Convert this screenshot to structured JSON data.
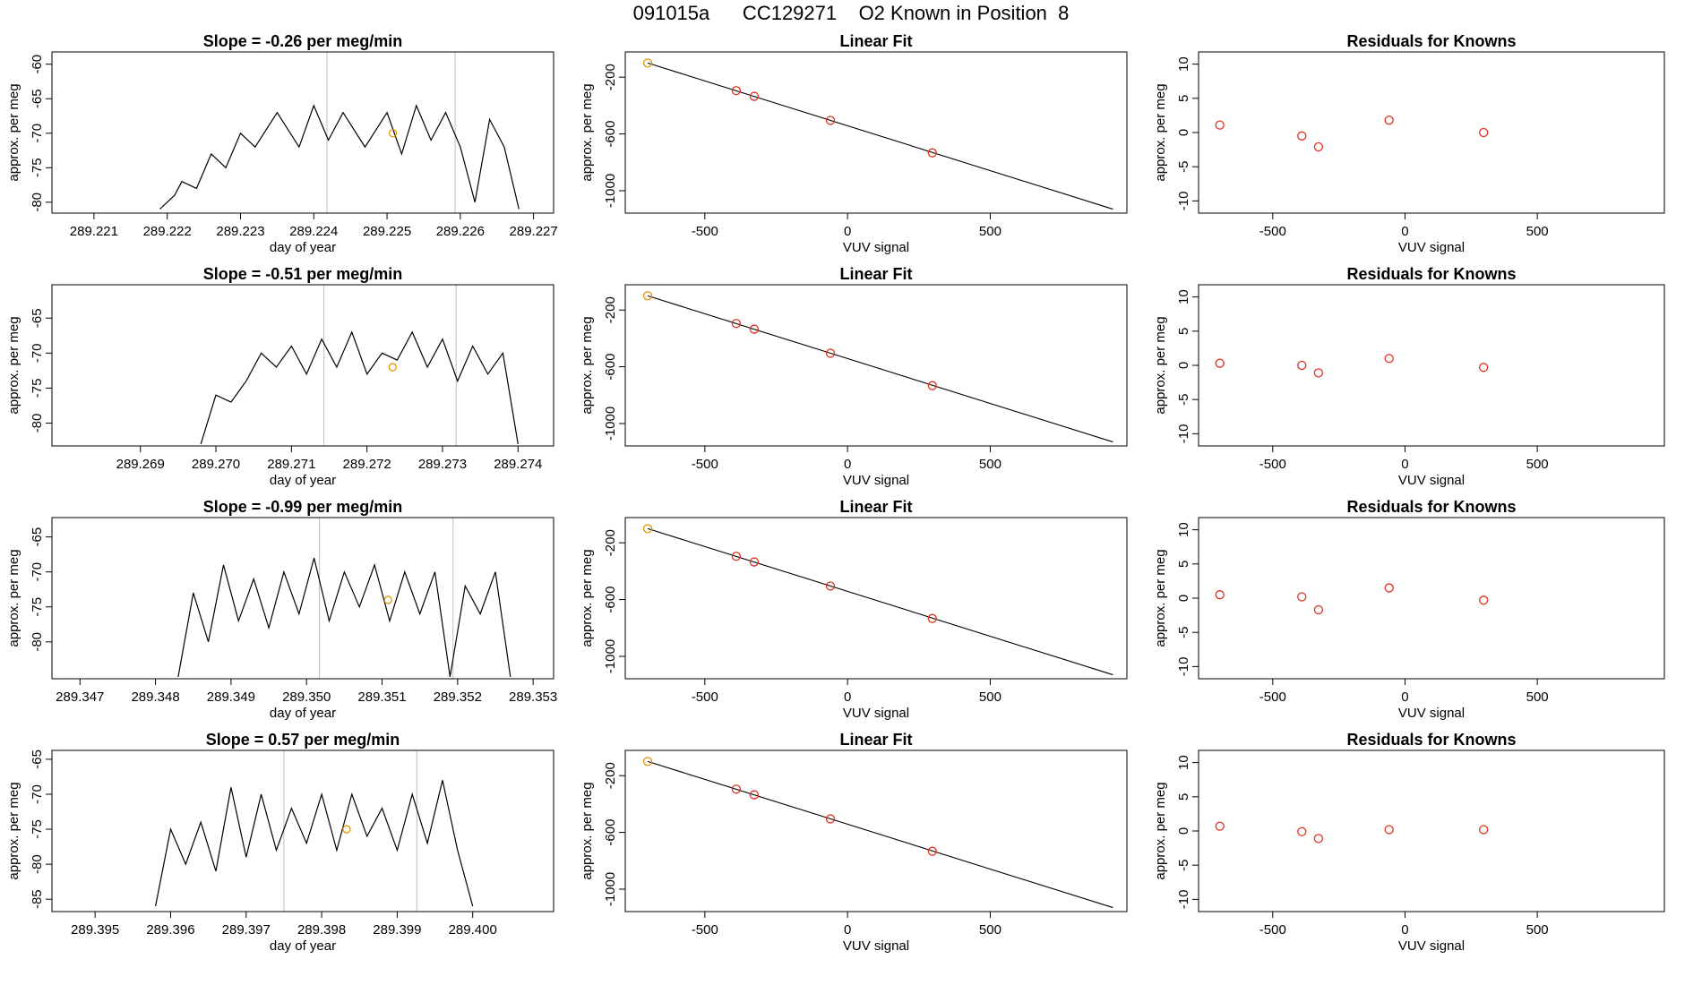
{
  "figure": {
    "title": "091015a      CC129271    O2 Known in Position  8"
  },
  "colors": {
    "line": "#000000",
    "frame": "#000000",
    "vline": "#bebebe",
    "known_point": "#e0301e",
    "first_point": "#e69500",
    "marker": "#e69500"
  },
  "chart_data": [
    {
      "row": 1,
      "timeseries": {
        "type": "line",
        "title": "Slope =  -0.26  per meg/min",
        "xlabel": "day of year",
        "ylabel": "approx. per meg",
        "xlim": [
          289.2205,
          289.2272
        ],
        "ylim": [
          -80.8,
          -59.0
        ],
        "xticks": [
          289.221,
          289.222,
          289.223,
          289.224,
          289.225,
          289.226,
          289.227
        ],
        "xtick_labels": [
          "289.221",
          "289.222",
          "289.223",
          "289.224",
          "289.225",
          "289.226",
          "289.227"
        ],
        "yticks": [
          -80,
          -75,
          -70,
          -65,
          -60
        ],
        "ytick_labels": [
          "-80",
          "-75",
          "-70",
          "-65",
          "-60"
        ],
        "vlines": [
          289.22418,
          289.22593
        ],
        "marker": {
          "x": 289.22508,
          "y": -70
        },
        "x": [
          289.2219,
          289.2221,
          289.2222,
          289.2224,
          289.2226,
          289.2228,
          289.223,
          289.2232,
          289.2235,
          289.2238,
          289.224,
          289.2242,
          289.2244,
          289.2247,
          289.225,
          289.2252,
          289.2254,
          289.2256,
          289.2258,
          289.226,
          289.2262,
          289.2264,
          289.2266,
          289.2268
        ],
        "y": [
          -81,
          -79,
          -77,
          -78,
          -73,
          -75,
          -70,
          -72,
          -67,
          -72,
          -66,
          -71,
          -67,
          -72,
          -67,
          -73,
          -66,
          -71,
          -67,
          -72,
          -80,
          -68,
          -72,
          -81
        ],
        "series_note": ""
      },
      "linear_fit": {
        "type": "scatter",
        "title": "Linear Fit",
        "xlabel": "VUV signal",
        "ylabel": "approx. per meg",
        "xlim": [
          -760,
          960
        ],
        "ylim": [
          -1120,
          -60
        ],
        "xticks": [
          -500,
          0,
          500
        ],
        "xtick_labels": [
          "-500",
          "0",
          "500"
        ],
        "yticks": [
          -1000,
          -600,
          -200
        ],
        "ytick_labels": [
          "-1000",
          "-600",
          "-200"
        ],
        "fit_line": {
          "x": [
            -700,
            930
          ],
          "y": [
            -100,
            -1130
          ]
        },
        "points": {
          "x": [
            -700,
            -390,
            -327,
            -60,
            297
          ],
          "y": [
            -100,
            -295,
            -335,
            -505,
            -733
          ]
        }
      },
      "residuals": {
        "type": "scatter",
        "title": "Residuals for Knowns",
        "xlabel": "VUV signal",
        "ylabel": "approx. per meg",
        "xlim": [
          -760,
          960
        ],
        "ylim": [
          -11,
          11
        ],
        "xticks": [
          -500,
          0,
          500
        ],
        "xtick_labels": [
          "-500",
          "0",
          "500"
        ],
        "yticks": [
          -10,
          -5,
          0,
          5,
          10
        ],
        "ytick_labels": [
          "-10",
          "-5",
          "0",
          "5",
          "10"
        ],
        "points": {
          "x": [
            -700,
            -390,
            -327,
            -60,
            297
          ],
          "y": [
            1.1,
            -0.5,
            -2.1,
            1.8,
            0.0
          ]
        }
      }
    },
    {
      "row": 2,
      "timeseries": {
        "type": "line",
        "title": "Slope =  -0.51  per meg/min",
        "xlabel": "day of year",
        "ylabel": "approx. per meg",
        "xlim": [
          289.2679,
          289.2744
        ],
        "ylim": [
          -82.5,
          -61.0
        ],
        "xticks": [
          289.269,
          289.27,
          289.271,
          289.272,
          289.273,
          289.274
        ],
        "xtick_labels": [
          "289.269",
          "289.270",
          "289.271",
          "289.272",
          "289.273",
          "289.274"
        ],
        "yticks": [
          -80,
          -75,
          -70,
          -65
        ],
        "ytick_labels": [
          "-80",
          "-75",
          "-70",
          "-65"
        ],
        "vlines": [
          289.27143,
          289.27318
        ],
        "marker": {
          "x": 289.27234,
          "y": -72
        },
        "x": [
          289.2698,
          289.27,
          289.2702,
          289.2704,
          289.2706,
          289.2708,
          289.271,
          289.2712,
          289.2714,
          289.2716,
          289.2718,
          289.272,
          289.2722,
          289.2724,
          289.2726,
          289.2728,
          289.273,
          289.2732,
          289.2734,
          289.2736,
          289.2738,
          289.274
        ],
        "y": [
          -83,
          -76,
          -77,
          -74,
          -70,
          -72,
          -69,
          -73,
          -68,
          -72,
          -67,
          -73,
          -70,
          -71,
          -67,
          -72,
          -68,
          -74,
          -69,
          -73,
          -70,
          -83
        ],
        "series_note": ""
      },
      "linear_fit": {
        "type": "scatter",
        "title": "Linear Fit",
        "xlabel": "VUV signal",
        "ylabel": "approx. per meg",
        "xlim": [
          -760,
          960
        ],
        "ylim": [
          -1120,
          -60
        ],
        "xticks": [
          -500,
          0,
          500
        ],
        "xtick_labels": [
          "-500",
          "0",
          "500"
        ],
        "yticks": [
          -1000,
          -600,
          -200
        ],
        "ytick_labels": [
          "-1000",
          "-600",
          "-200"
        ],
        "fit_line": {
          "x": [
            -700,
            930
          ],
          "y": [
            -100,
            -1130
          ]
        },
        "points": {
          "x": [
            -700,
            -390,
            -327,
            -60,
            297
          ],
          "y": [
            -100,
            -295,
            -335,
            -505,
            -733
          ]
        }
      },
      "residuals": {
        "type": "scatter",
        "title": "Residuals for Knowns",
        "xlabel": "VUV signal",
        "ylabel": "approx. per meg",
        "xlim": [
          -760,
          960
        ],
        "ylim": [
          -11,
          11
        ],
        "xticks": [
          -500,
          0,
          500
        ],
        "xtick_labels": [
          "-500",
          "0",
          "500"
        ],
        "yticks": [
          -10,
          -5,
          0,
          5,
          10
        ],
        "ytick_labels": [
          "-10",
          "-5",
          "0",
          "5",
          "10"
        ],
        "points": {
          "x": [
            -700,
            -390,
            -327,
            -60,
            297
          ],
          "y": [
            0.3,
            0.0,
            -1.1,
            1.0,
            -0.3
          ]
        }
      }
    },
    {
      "row": 3,
      "timeseries": {
        "type": "line",
        "title": "Slope =  -0.99  per meg/min",
        "xlabel": "day of year",
        "ylabel": "approx. per meg",
        "xlim": [
          289.3467,
          289.3532
        ],
        "ylim": [
          -84.5,
          -63.0
        ],
        "xticks": [
          289.347,
          289.348,
          289.349,
          289.35,
          289.351,
          289.352,
          289.353
        ],
        "xtick_labels": [
          "289.347",
          "289.348",
          "289.349",
          "289.350",
          "289.351",
          "289.352",
          "289.353"
        ],
        "yticks": [
          -80,
          -75,
          -70,
          -65
        ],
        "ytick_labels": [
          "-80",
          "-75",
          "-70",
          "-65"
        ],
        "vlines": [
          289.35017,
          289.35194
        ],
        "marker": {
          "x": 289.35108,
          "y": -74
        },
        "x": [
          289.3483,
          289.3485,
          289.3487,
          289.3489,
          289.3491,
          289.3493,
          289.3495,
          289.3497,
          289.3499,
          289.3501,
          289.3503,
          289.3505,
          289.3507,
          289.3509,
          289.3511,
          289.3513,
          289.3515,
          289.3517,
          289.3519,
          289.3521,
          289.3523,
          289.3525,
          289.3527
        ],
        "y": [
          -85,
          -73,
          -80,
          -69,
          -77,
          -71,
          -78,
          -70,
          -76,
          -68,
          -77,
          -70,
          -75,
          -69,
          -77,
          -70,
          -76,
          -70,
          -85,
          -72,
          -76,
          -70,
          -85
        ],
        "series_note": ""
      },
      "linear_fit": {
        "type": "scatter",
        "title": "Linear Fit",
        "xlabel": "VUV signal",
        "ylabel": "approx. per meg",
        "xlim": [
          -760,
          960
        ],
        "ylim": [
          -1120,
          -60
        ],
        "xticks": [
          -500,
          0,
          500
        ],
        "xtick_labels": [
          "-500",
          "0",
          "500"
        ],
        "yticks": [
          -1000,
          -600,
          -200
        ],
        "ytick_labels": [
          "-1000",
          "-600",
          "-200"
        ],
        "fit_line": {
          "x": [
            -700,
            930
          ],
          "y": [
            -100,
            -1130
          ]
        },
        "points": {
          "x": [
            -700,
            -390,
            -327,
            -60,
            297
          ],
          "y": [
            -100,
            -295,
            -335,
            -505,
            -733
          ]
        }
      },
      "residuals": {
        "type": "scatter",
        "title": "Residuals for Knowns",
        "xlabel": "VUV signal",
        "ylabel": "approx. per meg",
        "xlim": [
          -760,
          960
        ],
        "ylim": [
          -11,
          11
        ],
        "xticks": [
          -500,
          0,
          500
        ],
        "xtick_labels": [
          "-500",
          "0",
          "500"
        ],
        "yticks": [
          -10,
          -5,
          0,
          5,
          10
        ],
        "ytick_labels": [
          "-10",
          "-5",
          "0",
          "5",
          "10"
        ],
        "points": {
          "x": [
            -700,
            -390,
            -327,
            -60,
            297
          ],
          "y": [
            0.5,
            0.2,
            -1.7,
            1.5,
            -0.3
          ]
        }
      }
    },
    {
      "row": 4,
      "timeseries": {
        "type": "line",
        "title": "Slope =  0.57  per meg/min",
        "xlabel": "day of year",
        "ylabel": "approx. per meg",
        "xlim": [
          289.3945,
          289.401
        ],
        "ylim": [
          -86.0,
          -64.5
        ],
        "xticks": [
          289.395,
          289.396,
          289.397,
          289.398,
          289.399,
          289.4
        ],
        "xtick_labels": [
          "289.395",
          "289.396",
          "289.397",
          "289.398",
          "289.399",
          "289.400"
        ],
        "yticks": [
          -85,
          -80,
          -75,
          -70,
          -65
        ],
        "ytick_labels": [
          "-85",
          "-80",
          "-75",
          "-70",
          "-65"
        ],
        "vlines": [
          289.3975,
          289.39926
        ],
        "marker": {
          "x": 289.39833,
          "y": -75
        },
        "x": [
          289.3958,
          289.396,
          289.3962,
          289.3964,
          289.3966,
          289.3968,
          289.397,
          289.3972,
          289.3974,
          289.3976,
          289.3978,
          289.398,
          289.3982,
          289.3984,
          289.3986,
          289.3988,
          289.399,
          289.3992,
          289.3994,
          289.3996,
          289.3998,
          289.4
        ],
        "y": [
          -86,
          -75,
          -80,
          -74,
          -81,
          -69,
          -79,
          -70,
          -78,
          -72,
          -77,
          -70,
          -78,
          -70,
          -76,
          -72,
          -78,
          -70,
          -77,
          -68,
          -78,
          -86
        ],
        "series_note": ""
      },
      "linear_fit": {
        "type": "scatter",
        "title": "Linear Fit",
        "xlabel": "VUV signal",
        "ylabel": "approx. per meg",
        "xlim": [
          -760,
          960
        ],
        "ylim": [
          -1120,
          -60
        ],
        "xticks": [
          -500,
          0,
          500
        ],
        "xtick_labels": [
          "-500",
          "0",
          "500"
        ],
        "yticks": [
          -1000,
          -600,
          -200
        ],
        "ytick_labels": [
          "-1000",
          "-600",
          "-200"
        ],
        "fit_line": {
          "x": [
            -700,
            930
          ],
          "y": [
            -100,
            -1130
          ]
        },
        "points": {
          "x": [
            -700,
            -390,
            -327,
            -60,
            297
          ],
          "y": [
            -100,
            -295,
            -335,
            -505,
            -733
          ]
        }
      },
      "residuals": {
        "type": "scatter",
        "title": "Residuals for Knowns",
        "xlabel": "VUV signal",
        "ylabel": "approx. per meg",
        "xlim": [
          -760,
          960
        ],
        "ylim": [
          -11,
          11
        ],
        "xticks": [
          -500,
          0,
          500
        ],
        "xtick_labels": [
          "-500",
          "0",
          "500"
        ],
        "yticks": [
          -10,
          -5,
          0,
          5,
          10
        ],
        "ytick_labels": [
          "-10",
          "-5",
          "0",
          "5",
          "10"
        ],
        "points": {
          "x": [
            -700,
            -390,
            -327,
            -60,
            297
          ],
          "y": [
            0.7,
            -0.1,
            -1.1,
            0.2,
            0.2
          ]
        }
      }
    }
  ]
}
